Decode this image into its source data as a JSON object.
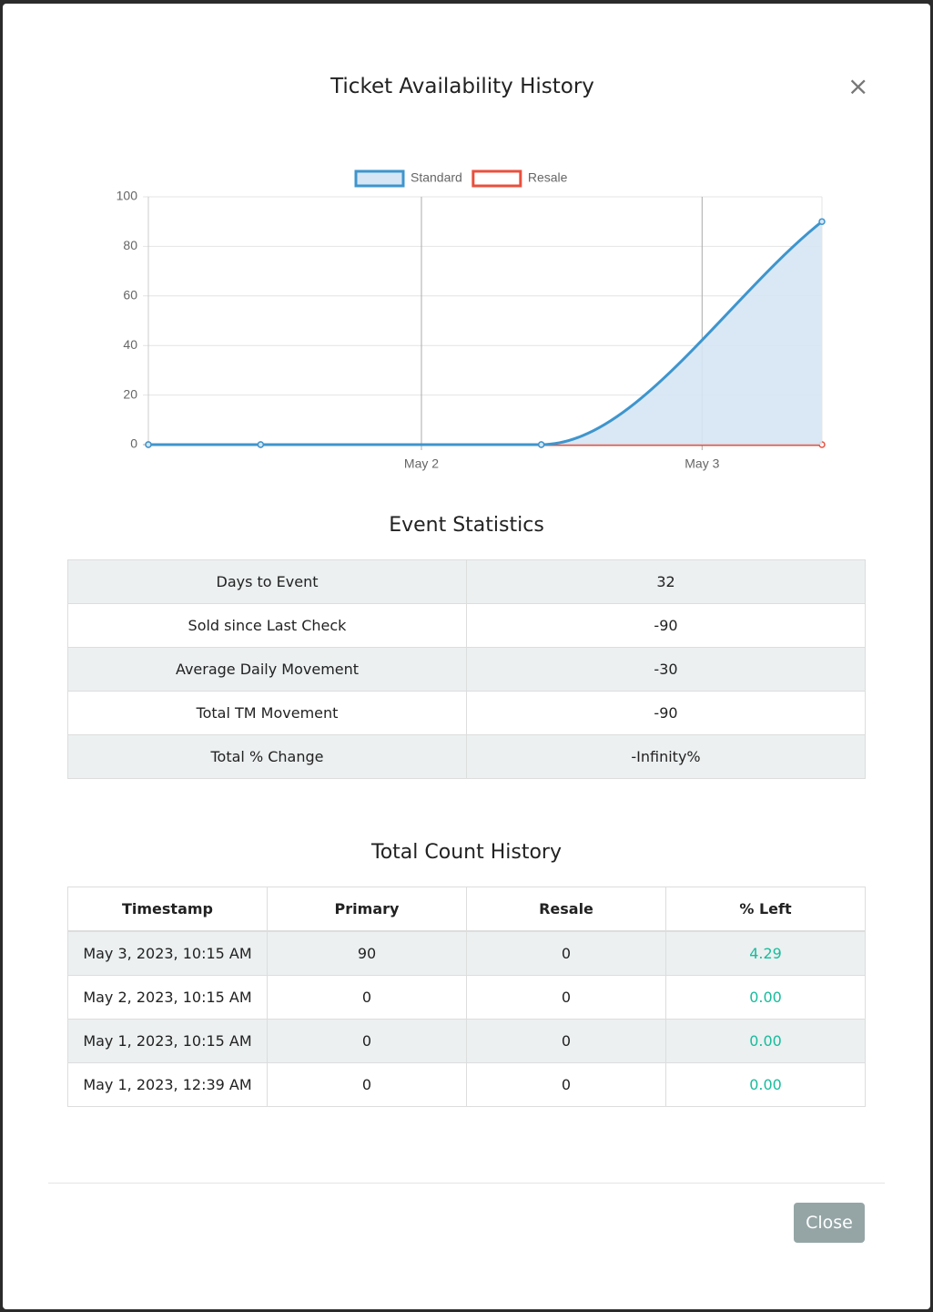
{
  "modal": {
    "title": "Ticket Availability History",
    "close_icon": "×",
    "close_button": "Close"
  },
  "chart_data": {
    "type": "line",
    "x": [
      "May 1, 2023, 12:39 AM",
      "May 1, 2023, 10:15 AM",
      "May 2, 2023, 10:15 AM",
      "May 3, 2023, 10:15 AM"
    ],
    "series": [
      {
        "name": "Standard",
        "color": "#3e95cd",
        "fill": "#d6e6f5",
        "values": [
          0,
          0,
          0,
          90
        ]
      },
      {
        "name": "Resale",
        "color": "#e8503e",
        "values": [
          0,
          0,
          0,
          0
        ]
      }
    ],
    "xlim": [
      "May 1, 2023, 12:39 AM",
      "May 3, 2023, 10:15 AM"
    ],
    "xticks": [
      {
        "value": "May 2, 2023",
        "label": "May 2"
      },
      {
        "value": "May 3, 2023",
        "label": "May 3"
      }
    ],
    "ylim": [
      0,
      100
    ],
    "yticks": [
      0,
      20,
      40,
      60,
      80,
      100
    ],
    "grid": true,
    "legend": "top"
  },
  "stats": {
    "title": "Event Statistics",
    "rows": [
      [
        "Days to Event",
        "32"
      ],
      [
        "Sold since Last Check",
        "-90"
      ],
      [
        "Average Daily Movement",
        "-30"
      ],
      [
        "Total TM Movement",
        "-90"
      ],
      [
        "Total % Change",
        "-Infinity%"
      ]
    ]
  },
  "history": {
    "title": "Total Count History",
    "columns": [
      "Timestamp",
      "Primary",
      "Resale",
      "% Left"
    ],
    "rows": [
      [
        "May 3, 2023, 10:15 AM",
        "90",
        "0",
        "4.29"
      ],
      [
        "May 2, 2023, 10:15 AM",
        "0",
        "0",
        "0.00"
      ],
      [
        "May 1, 2023, 10:15 AM",
        "0",
        "0",
        "0.00"
      ],
      [
        "May 1, 2023, 12:39 AM",
        "0",
        "0",
        "0.00"
      ]
    ]
  }
}
